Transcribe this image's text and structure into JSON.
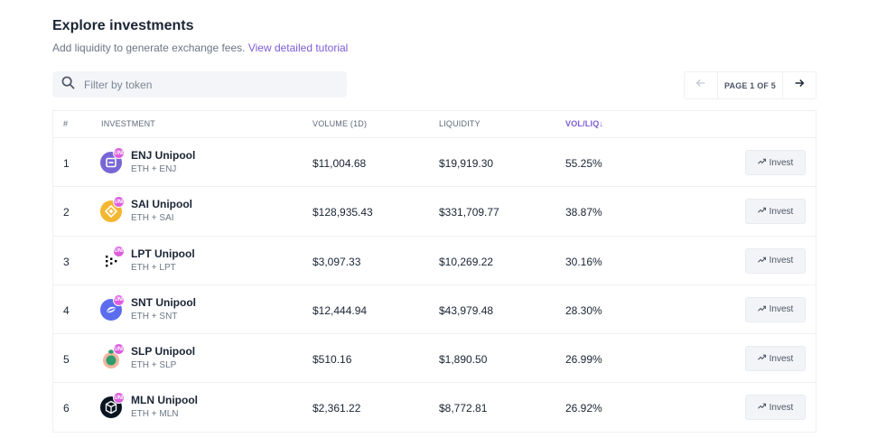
{
  "header": {
    "title": "Explore investments",
    "subtitle": "Add liquidity to generate exchange fees.",
    "tutorial_link": "View detailed tutorial"
  },
  "search": {
    "placeholder": "Filter by token",
    "value": ""
  },
  "pagination": {
    "label": "PAGE 1 OF 5"
  },
  "table": {
    "columns": {
      "num": "#",
      "investment": "INVESTMENT",
      "volume": "VOLUME (1D)",
      "liquidity": "LIQUIDITY",
      "ratio": "VOL/LIQ"
    },
    "sort_arrow": "↓",
    "invest_label": "Invest",
    "badge_label": "UNI",
    "rows": [
      {
        "num": "1",
        "name": "ENJ Unipool",
        "pair": "ETH + ENJ",
        "volume": "$11,004.68",
        "liquidity": "$19,919.30",
        "ratio": "55.25%",
        "icon": "enj-token-icon",
        "color": "#7866d5"
      },
      {
        "num": "2",
        "name": "SAI Unipool",
        "pair": "ETH + SAI",
        "volume": "$128,935.43",
        "liquidity": "$331,709.77",
        "ratio": "38.87%",
        "icon": "sai-token-icon",
        "color": "#f4b731"
      },
      {
        "num": "3",
        "name": "LPT Unipool",
        "pair": "ETH + LPT",
        "volume": "$3,097.33",
        "liquidity": "$10,269.22",
        "ratio": "30.16%",
        "icon": "lpt-token-icon",
        "color": "#000000"
      },
      {
        "num": "4",
        "name": "SNT Unipool",
        "pair": "ETH + SNT",
        "volume": "$12,444.94",
        "liquidity": "$43,979.48",
        "ratio": "28.30%",
        "icon": "snt-token-icon",
        "color": "#5b6dee"
      },
      {
        "num": "5",
        "name": "SLP Unipool",
        "pair": "ETH + SLP",
        "volume": "$510.16",
        "liquidity": "$1,890.50",
        "ratio": "26.99%",
        "icon": "slp-token-icon",
        "color": "#2f9e6e"
      },
      {
        "num": "6",
        "name": "MLN Unipool",
        "pair": "ETH + MLN",
        "volume": "$2,361.22",
        "liquidity": "$8,772.81",
        "ratio": "26.92%",
        "icon": "mln-token-icon",
        "color": "#0b1521"
      }
    ]
  }
}
